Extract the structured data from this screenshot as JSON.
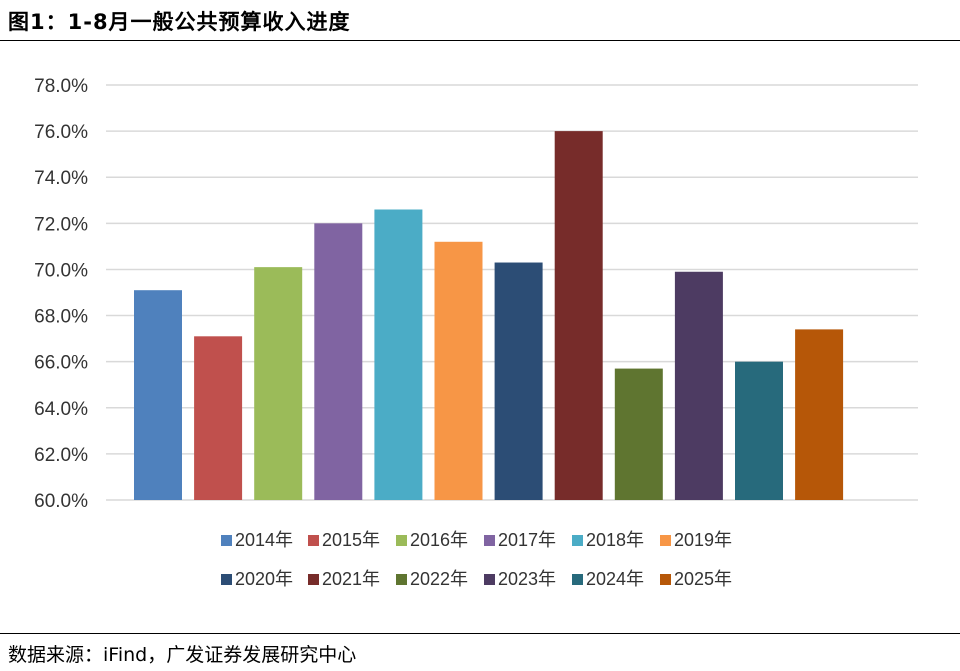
{
  "figure_title": "图1：1-8月一般公共预算收入进度",
  "source": "数据来源：iFind，广发证券发展研究中心",
  "chart_data": {
    "type": "bar",
    "title": "1-8月一般公共预算收入进度",
    "xlabel": "",
    "ylabel": "",
    "ylim": [
      60,
      78
    ],
    "yticks": [
      60,
      62,
      64,
      66,
      68,
      70,
      72,
      74,
      76,
      78
    ],
    "ytick_labels": [
      "60.0%",
      "62.0%",
      "64.0%",
      "66.0%",
      "68.0%",
      "70.0%",
      "72.0%",
      "74.0%",
      "76.0%",
      "78.0%"
    ],
    "grid": true,
    "legend_position": "bottom",
    "categories": [
      "2014年",
      "2015年",
      "2016年",
      "2017年",
      "2018年",
      "2019年",
      "2020年",
      "2021年",
      "2022年",
      "2023年",
      "2024年",
      "2025年"
    ],
    "values": [
      69.1,
      67.1,
      70.1,
      72.0,
      72.6,
      71.2,
      70.3,
      76.0,
      65.7,
      69.9,
      66.0,
      67.4
    ],
    "colors": [
      "#4F81BD",
      "#C0504D",
      "#9BBB59",
      "#8064A2",
      "#4BACC6",
      "#F79646",
      "#2C4D75",
      "#772C2A",
      "#5F7530",
      "#4D3B62",
      "#276A7C",
      "#B65708"
    ]
  }
}
